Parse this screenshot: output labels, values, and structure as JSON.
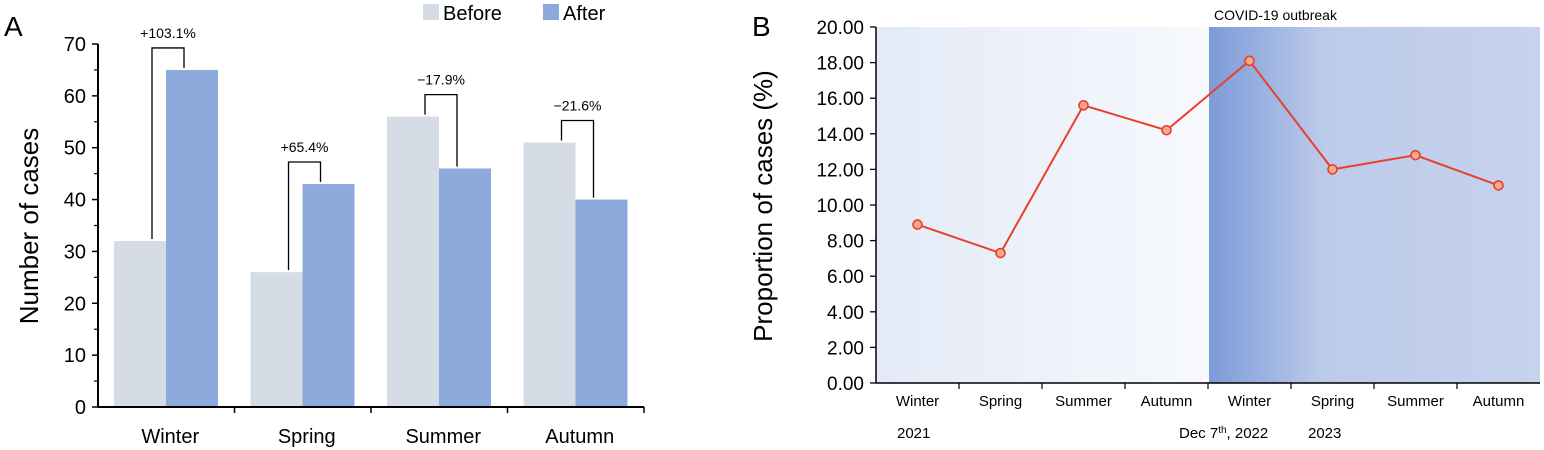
{
  "chart_data": [
    {
      "panel_label": "A",
      "type": "bar",
      "categories": [
        "Winter",
        "Spring",
        "Summer",
        "Autumn"
      ],
      "series": [
        {
          "name": "Before",
          "values": [
            32,
            26,
            56,
            51
          ],
          "color": "#d5dce6"
        },
        {
          "name": "After",
          "values": [
            65,
            43,
            46,
            40
          ],
          "color": "#8eaadc"
        }
      ],
      "annotations": [
        "+103.1%",
        "+65.4%",
        "−17.9%",
        "−21.6%"
      ],
      "ylabel": "Number of cases",
      "ylim": [
        0,
        70
      ],
      "yticks": [
        "0",
        "10",
        "20",
        "30",
        "40",
        "50",
        "60",
        "70"
      ],
      "legend": "top-right",
      "grid": false
    },
    {
      "panel_label": "B",
      "type": "line",
      "categories": [
        "Winter",
        "Spring",
        "Summer",
        "Autumn",
        "Winter",
        "Spring",
        "Summer",
        "Autumn"
      ],
      "series": [
        {
          "values": [
            8.9,
            7.3,
            15.6,
            14.2,
            18.1,
            12.0,
            12.8,
            11.1
          ],
          "color": "#e8402b"
        }
      ],
      "year_labels": [
        "2021",
        "Dec 7",
        "th",
        ", 2022",
        "2023"
      ],
      "annotation": "COVID-19 outbreak",
      "outbreak_start_index": 4,
      "ylabel": "Proportion of cases (%)",
      "ylim": [
        0,
        20
      ],
      "yticks": [
        "0.00",
        "2.00",
        "4.00",
        "6.00",
        "8.00",
        "10.00",
        "12.00",
        "14.00",
        "16.00",
        "18.00",
        "20.00"
      ],
      "grid": false
    }
  ]
}
